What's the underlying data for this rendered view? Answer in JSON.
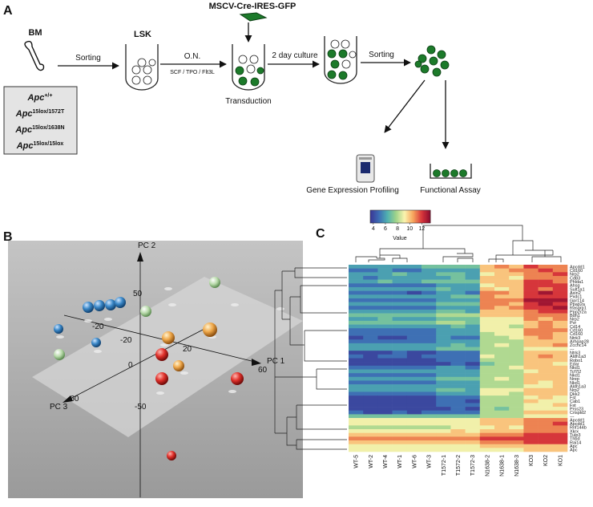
{
  "panel_a": {
    "label": "A",
    "vector": "MSCV-Cre-IRES-GFP",
    "source": "BM",
    "population": "LSK",
    "step1": "Sorting",
    "overnight": "O.N.",
    "cytokines": "SCF / TPO / Flt3L",
    "transduction": "Transduction",
    "culture": "2 day culture",
    "step2": "Sorting",
    "profiling": "Gene Expression Profiling",
    "assay": "Functional Assay",
    "genotypes": [
      {
        "base": "Apc",
        "sup": "+/+"
      },
      {
        "base": "Apc",
        "sup": "15lox/1572T"
      },
      {
        "base": "Apc",
        "sup": "15lox/1638N"
      },
      {
        "base": "Apc",
        "sup": "15lox/15lox"
      }
    ]
  },
  "panel_b": {
    "label": "B",
    "axes": {
      "pc1": "PC 1",
      "pc2": "PC 2",
      "pc3": "PC 3"
    },
    "tick_labels": [
      "50",
      "60",
      "-60",
      "-20",
      "-20",
      "0",
      "20",
      "-50"
    ]
  },
  "panel_c": {
    "label": "C",
    "colorbar": {
      "label": "Value",
      "range": [
        3.5,
        13.4
      ],
      "ticks": [
        4,
        6,
        8,
        10,
        12
      ],
      "colors": [
        "#3a3594",
        "#3d6cb4",
        "#4fb0b0",
        "#9fd38a",
        "#fbf4ae",
        "#f7a45c",
        "#d7363b",
        "#8b0a2e"
      ]
    },
    "heatmap": {
      "columns": [
        "WT-5",
        "WT-2",
        "WT-4",
        "WT-1",
        "WT-6",
        "WT-3",
        "T1572-1",
        "T1572-2",
        "T1572-3",
        "N1638-2",
        "N1638-1",
        "N1638-3",
        "KO3",
        "KO2",
        "KO1"
      ],
      "rows": [
        {
          "label": "Apcdd1",
          "values": [
            6,
            6,
            6,
            6,
            6,
            7,
            7,
            7,
            7,
            10,
            11,
            10,
            12,
            11,
            11
          ]
        },
        {
          "label": "Cd160",
          "values": [
            5,
            5,
            6,
            5,
            5,
            6,
            6,
            6,
            6,
            10,
            10,
            11,
            11,
            12,
            11
          ]
        },
        {
          "label": "Nrp2",
          "values": [
            6,
            6,
            6,
            7,
            6,
            6,
            7,
            7,
            6,
            9,
            10,
            10,
            11,
            11,
            12
          ]
        },
        {
          "label": "Cd83",
          "values": [
            6,
            5,
            6,
            6,
            6,
            6,
            6,
            7,
            6,
            10,
            10,
            9,
            11,
            11,
            11
          ]
        },
        {
          "label": "Phlda1",
          "values": [
            6,
            6,
            7,
            6,
            6,
            7,
            7,
            7,
            7,
            10,
            10,
            10,
            12,
            12,
            11
          ]
        },
        {
          "label": "Ahsg",
          "values": [
            5,
            5,
            5,
            5,
            5,
            5,
            6,
            6,
            6,
            9,
            10,
            10,
            12,
            12,
            12
          ]
        },
        {
          "label": "Sult1a1",
          "values": [
            6,
            6,
            6,
            6,
            6,
            6,
            7,
            6,
            6,
            10,
            9,
            10,
            12,
            11,
            12
          ]
        },
        {
          "label": "Axin2",
          "values": [
            5,
            5,
            5,
            5,
            4,
            5,
            6,
            6,
            5,
            11,
            11,
            10,
            12,
            13,
            12
          ]
        },
        {
          "label": "Pxdc1",
          "values": [
            6,
            6,
            6,
            6,
            6,
            6,
            6,
            7,
            7,
            11,
            10,
            10,
            12,
            12,
            12
          ]
        },
        {
          "label": "Gpr114",
          "values": [
            5,
            5,
            5,
            5,
            5,
            5,
            6,
            6,
            6,
            11,
            11,
            11,
            13,
            13,
            13
          ]
        },
        {
          "label": "Ppap2a",
          "values": [
            6,
            6,
            6,
            6,
            6,
            6,
            7,
            7,
            7,
            11,
            11,
            10,
            12,
            13,
            12
          ]
        },
        {
          "label": "Rasgrp1",
          "values": [
            5,
            5,
            5,
            5,
            5,
            5,
            6,
            6,
            6,
            11,
            10,
            11,
            12,
            12,
            13
          ]
        },
        {
          "label": "Ppp2r2a",
          "values": [
            6,
            6,
            6,
            6,
            6,
            6,
            7,
            7,
            6,
            10,
            10,
            10,
            11,
            12,
            12
          ]
        },
        {
          "label": "Bdh1",
          "values": [
            7,
            7,
            7,
            7,
            7,
            7,
            8,
            8,
            8,
            10,
            10,
            10,
            11,
            11,
            11
          ]
        },
        {
          "label": "Nrp2",
          "values": [
            6,
            6,
            7,
            6,
            6,
            6,
            7,
            7,
            7,
            9,
            9,
            9,
            11,
            10,
            11
          ]
        },
        {
          "label": "Pvr",
          "values": [
            7,
            7,
            7,
            7,
            7,
            7,
            8,
            8,
            7,
            9,
            9,
            9,
            10,
            11,
            10
          ]
        },
        {
          "label": "Cd14",
          "values": [
            6,
            6,
            6,
            6,
            6,
            6,
            6,
            7,
            6,
            9,
            9,
            8,
            10,
            11,
            10
          ]
        },
        {
          "label": "Cd160",
          "values": [
            5,
            5,
            5,
            5,
            5,
            5,
            6,
            6,
            6,
            9,
            9,
            9,
            11,
            11,
            11
          ]
        },
        {
          "label": "Cd160",
          "values": [
            5,
            5,
            5,
            5,
            5,
            5,
            6,
            6,
            6,
            8,
            9,
            9,
            11,
            11,
            10
          ]
        },
        {
          "label": "Ntrk3",
          "values": [
            4,
            5,
            4,
            4,
            5,
            5,
            6,
            5,
            5,
            8,
            8,
            9,
            10,
            11,
            10
          ]
        },
        {
          "label": "Arhgap28",
          "values": [
            5,
            5,
            5,
            5,
            5,
            5,
            6,
            6,
            6,
            8,
            8,
            8,
            10,
            10,
            10
          ]
        },
        {
          "label": "Zcchc14",
          "values": [
            6,
            6,
            6,
            6,
            6,
            6,
            6,
            7,
            6,
            8,
            9,
            8,
            10,
            10,
            11
          ]
        },
        {
          "label": "---",
          "values": [
            6,
            6,
            6,
            6,
            6,
            6,
            7,
            7,
            7,
            8,
            8,
            8,
            9,
            9,
            9
          ]
        },
        {
          "label": "Ntrk3",
          "values": [
            4,
            4,
            4,
            5,
            4,
            4,
            5,
            5,
            5,
            8,
            8,
            8,
            10,
            10,
            10
          ]
        },
        {
          "label": "Aldh1a3",
          "values": [
            5,
            4,
            5,
            5,
            4,
            5,
            5,
            5,
            5,
            9,
            8,
            8,
            10,
            11,
            10
          ]
        },
        {
          "label": "Robo1",
          "values": [
            4,
            4,
            4,
            4,
            4,
            4,
            5,
            5,
            5,
            8,
            8,
            8,
            10,
            10,
            10
          ]
        },
        {
          "label": "Edar",
          "values": [
            4,
            4,
            4,
            4,
            4,
            4,
            4,
            5,
            4,
            7,
            8,
            8,
            10,
            10,
            9
          ]
        },
        {
          "label": "Nkd1",
          "values": [
            5,
            5,
            5,
            5,
            5,
            5,
            6,
            6,
            5,
            8,
            8,
            9,
            10,
            10,
            10
          ]
        },
        {
          "label": "Tcf7l2",
          "values": [
            6,
            6,
            6,
            6,
            6,
            6,
            6,
            6,
            6,
            8,
            8,
            8,
            9,
            10,
            10
          ]
        },
        {
          "label": "Nkd1",
          "values": [
            5,
            5,
            5,
            5,
            5,
            5,
            6,
            6,
            6,
            8,
            8,
            8,
            10,
            10,
            10
          ]
        },
        {
          "label": "Nrep",
          "values": [
            6,
            6,
            6,
            6,
            6,
            6,
            7,
            7,
            7,
            8,
            9,
            8,
            10,
            10,
            10
          ]
        },
        {
          "label": "Nkd1",
          "values": [
            5,
            5,
            5,
            5,
            5,
            5,
            6,
            6,
            6,
            8,
            8,
            8,
            10,
            9,
            10
          ]
        },
        {
          "label": "Aldh1a3",
          "values": [
            6,
            6,
            6,
            6,
            6,
            6,
            6,
            6,
            6,
            8,
            8,
            8,
            9,
            9,
            10
          ]
        },
        {
          "label": "Nrp2",
          "values": [
            6,
            6,
            6,
            6,
            6,
            6,
            7,
            7,
            6,
            9,
            9,
            9,
            10,
            10,
            10
          ]
        },
        {
          "label": "Dkk2",
          "values": [
            5,
            5,
            5,
            5,
            5,
            5,
            6,
            6,
            6,
            9,
            9,
            8,
            10,
            10,
            10
          ]
        },
        {
          "label": "Fst",
          "values": [
            4,
            4,
            4,
            4,
            4,
            4,
            5,
            5,
            5,
            8,
            8,
            8,
            9,
            10,
            9
          ]
        },
        {
          "label": "Cab1",
          "values": [
            4,
            4,
            4,
            4,
            4,
            4,
            5,
            5,
            4,
            8,
            8,
            8,
            10,
            9,
            9
          ]
        },
        {
          "label": "Fst",
          "values": [
            4,
            4,
            4,
            4,
            4,
            4,
            5,
            5,
            5,
            8,
            8,
            8,
            9,
            9,
            10
          ]
        },
        {
          "label": "Prss23",
          "values": [
            4,
            4,
            4,
            4,
            4,
            4,
            4,
            5,
            4,
            8,
            7,
            8,
            9,
            9,
            9
          ]
        },
        {
          "label": "Crispld2",
          "values": [
            5,
            4,
            4,
            5,
            4,
            5,
            5,
            5,
            5,
            8,
            8,
            8,
            10,
            10,
            10
          ]
        },
        {
          "label": "---",
          "values": [
            7,
            7,
            7,
            7,
            7,
            7,
            7,
            7,
            7,
            8,
            8,
            8,
            9,
            9,
            9
          ]
        },
        {
          "label": "Apcdd1",
          "values": [
            9,
            9,
            9,
            9,
            9,
            9,
            9,
            9,
            9,
            10,
            10,
            10,
            11,
            11,
            11
          ]
        },
        {
          "label": "Apcdd1",
          "values": [
            9,
            9,
            9,
            9,
            9,
            9,
            9,
            9,
            9,
            10,
            10,
            10,
            11,
            11,
            12
          ]
        },
        {
          "label": "Rnf144b",
          "values": [
            8,
            8,
            8,
            8,
            8,
            8,
            8,
            9,
            9,
            9,
            10,
            9,
            11,
            11,
            11
          ]
        },
        {
          "label": "Xkrx",
          "values": [
            9,
            9,
            9,
            9,
            9,
            9,
            9,
            10,
            9,
            10,
            10,
            10,
            11,
            11,
            11
          ]
        },
        {
          "label": "Tulp3",
          "values": [
            10,
            10,
            10,
            10,
            10,
            10,
            10,
            10,
            10,
            11,
            11,
            11,
            12,
            12,
            12
          ]
        },
        {
          "label": "Thbd",
          "values": [
            11,
            11,
            11,
            11,
            11,
            11,
            11,
            11,
            11,
            12,
            12,
            12,
            12,
            12,
            12
          ]
        },
        {
          "label": "Rai14",
          "values": [
            10,
            10,
            10,
            10,
            10,
            10,
            10,
            10,
            10,
            11,
            11,
            11,
            12,
            12,
            12
          ]
        },
        {
          "label": "Apc",
          "values": [
            9,
            9,
            9,
            9,
            9,
            9,
            9,
            9,
            9,
            10,
            10,
            10,
            10,
            10,
            10
          ]
        },
        {
          "label": "Apc",
          "values": [
            9,
            9,
            9,
            9,
            9,
            9,
            9,
            9,
            9,
            9,
            9,
            9,
            10,
            10,
            10
          ]
        }
      ]
    }
  }
}
